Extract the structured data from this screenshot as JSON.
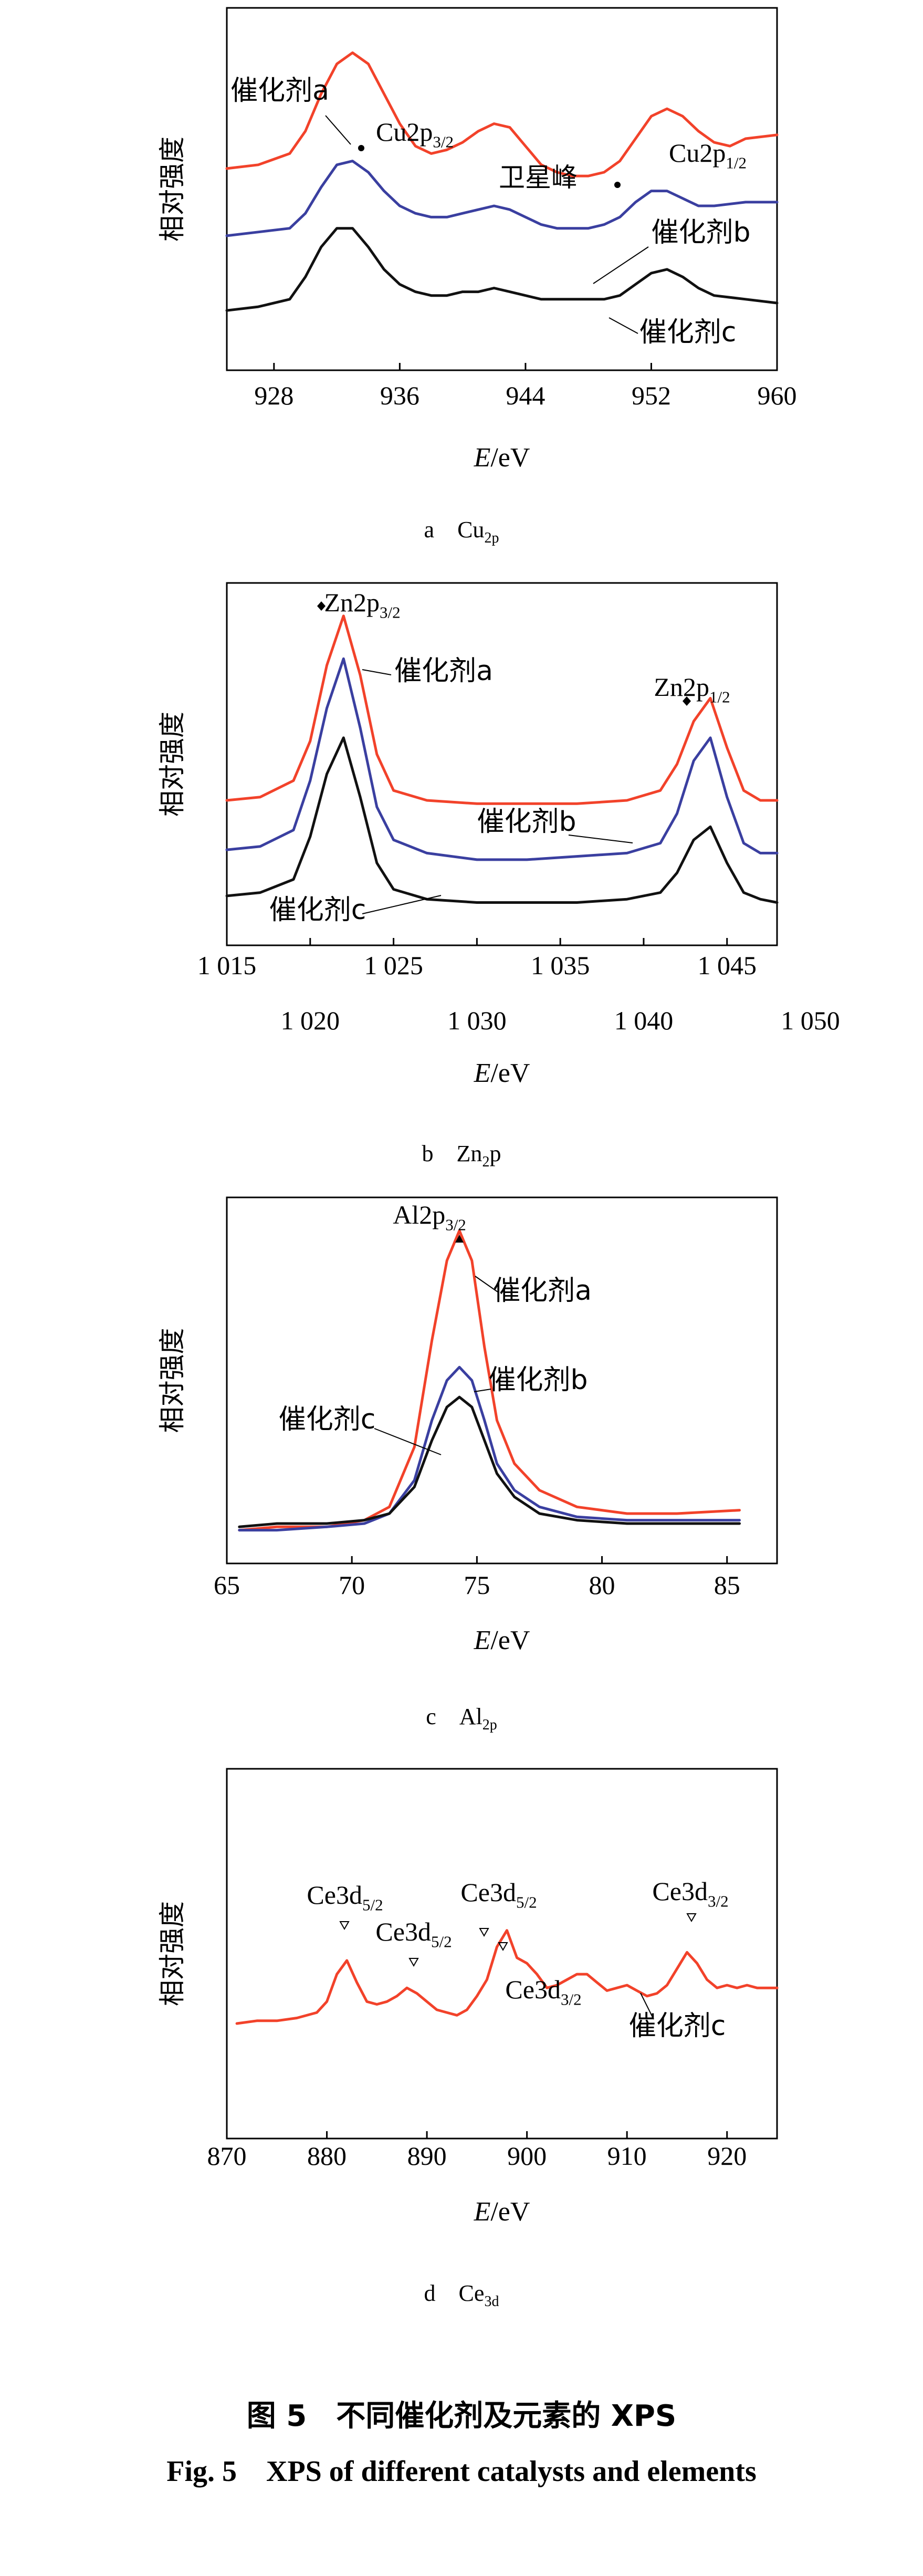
{
  "colors": {
    "catalyst_a": "#f2422a",
    "catalyst_b": "#3a3fa0",
    "catalyst_c": "#111111",
    "frame": "#000000"
  },
  "chart_data": [
    {
      "type": "line",
      "subfigure": "a",
      "caption": "a Cu2p",
      "caption_main": "a　Cu",
      "caption_sub": "2p",
      "xlabel_italic": "E",
      "xlabel_unit": "/eV",
      "ylabel": "相对强度",
      "xlim": [
        925,
        960
      ],
      "xticks": [
        928,
        936,
        944,
        952,
        960
      ],
      "xtick_labels": [
        "928",
        "936",
        "944",
        "952",
        "960"
      ],
      "series": [
        {
          "name": "催化剂a",
          "color": "#f2422a",
          "x": [
            925,
            927,
            929,
            930,
            931,
            932,
            933,
            934,
            935,
            936,
            937,
            938,
            939,
            940,
            941,
            942,
            943,
            944,
            945,
            946,
            947,
            948,
            949,
            950,
            951,
            952,
            953,
            954,
            955,
            956,
            957,
            958,
            960
          ],
          "y": [
            0.62,
            0.63,
            0.66,
            0.72,
            0.82,
            0.9,
            0.93,
            0.9,
            0.82,
            0.74,
            0.68,
            0.66,
            0.67,
            0.69,
            0.72,
            0.74,
            0.73,
            0.68,
            0.63,
            0.61,
            0.6,
            0.6,
            0.61,
            0.64,
            0.7,
            0.76,
            0.78,
            0.76,
            0.72,
            0.69,
            0.68,
            0.7,
            0.71
          ]
        },
        {
          "name": "催化剂b",
          "color": "#3a3fa0",
          "x": [
            925,
            927,
            929,
            930,
            931,
            932,
            933,
            934,
            935,
            936,
            937,
            938,
            939,
            940,
            941,
            942,
            943,
            944,
            945,
            946,
            947,
            948,
            949,
            950,
            951,
            952,
            953,
            954,
            955,
            956,
            958,
            960
          ],
          "y": [
            0.44,
            0.45,
            0.46,
            0.5,
            0.57,
            0.63,
            0.64,
            0.61,
            0.56,
            0.52,
            0.5,
            0.49,
            0.49,
            0.5,
            0.51,
            0.52,
            0.51,
            0.49,
            0.47,
            0.46,
            0.46,
            0.46,
            0.47,
            0.49,
            0.53,
            0.56,
            0.56,
            0.54,
            0.52,
            0.52,
            0.53,
            0.53
          ]
        },
        {
          "name": "催化剂c",
          "color": "#111111",
          "x": [
            925,
            927,
            929,
            930,
            931,
            932,
            933,
            934,
            935,
            936,
            937,
            938,
            939,
            940,
            941,
            942,
            943,
            944,
            945,
            946,
            947,
            948,
            949,
            950,
            951,
            952,
            953,
            954,
            955,
            956,
            958,
            960
          ],
          "y": [
            0.24,
            0.25,
            0.27,
            0.33,
            0.41,
            0.46,
            0.46,
            0.41,
            0.35,
            0.31,
            0.29,
            0.28,
            0.28,
            0.29,
            0.29,
            0.3,
            0.29,
            0.28,
            0.27,
            0.27,
            0.27,
            0.27,
            0.27,
            0.28,
            0.31,
            0.34,
            0.35,
            0.33,
            0.3,
            0.28,
            0.27,
            0.26
          ]
        }
      ],
      "annotations": [
        {
          "text_main": "Cu2p",
          "text_sub": "3/2",
          "x": 932.8,
          "y": 0.95,
          "marker": "dot"
        },
        {
          "text": "卫星峰",
          "x": 942,
          "y": 0.8
        },
        {
          "text_main": "Cu2p",
          "text_sub": "1/2",
          "x": 949,
          "y": 0.8,
          "marker": "dot"
        }
      ],
      "series_labels": [
        "催化剂a",
        "催化剂b",
        "催化剂c"
      ]
    },
    {
      "type": "line",
      "subfigure": "b",
      "caption": "b Zn2p",
      "caption_main": "b　Zn",
      "caption_sub": "2",
      "caption_tail": "p",
      "xlabel_italic": "E",
      "xlabel_unit": "/eV",
      "ylabel": "相对强度",
      "xlim": [
        1015,
        1048
      ],
      "xticks_top": [
        1015,
        1025,
        1035,
        1045
      ],
      "xtick_top_labels": [
        "1 015",
        "1 025",
        "1 035",
        "1 045"
      ],
      "xticks_bottom": [
        1020,
        1030,
        1040,
        1050
      ],
      "xtick_bottom_labels": [
        "1 020",
        "1 030",
        "1 040",
        "1 050"
      ],
      "series": [
        {
          "name": "催化剂a",
          "color": "#f2422a",
          "x": [
            1015,
            1017,
            1019,
            1020,
            1021,
            1022,
            1023,
            1024,
            1025,
            1027,
            1030,
            1033,
            1036,
            1039,
            1041,
            1042,
            1043,
            1044,
            1045,
            1046,
            1047,
            1048
          ],
          "y": [
            0.44,
            0.45,
            0.5,
            0.62,
            0.85,
            1.0,
            0.82,
            0.58,
            0.47,
            0.44,
            0.43,
            0.43,
            0.43,
            0.44,
            0.47,
            0.55,
            0.68,
            0.75,
            0.6,
            0.47,
            0.44,
            0.44
          ]
        },
        {
          "name": "催化剂b",
          "color": "#3a3fa0",
          "x": [
            1015,
            1017,
            1019,
            1020,
            1021,
            1022,
            1023,
            1024,
            1025,
            1027,
            1030,
            1033,
            1036,
            1039,
            1041,
            1042,
            1043,
            1044,
            1045,
            1046,
            1047,
            1048
          ],
          "y": [
            0.29,
            0.3,
            0.35,
            0.5,
            0.72,
            0.87,
            0.66,
            0.42,
            0.32,
            0.28,
            0.26,
            0.26,
            0.27,
            0.28,
            0.31,
            0.4,
            0.56,
            0.63,
            0.45,
            0.31,
            0.28,
            0.28
          ]
        },
        {
          "name": "催化剂c",
          "color": "#111111",
          "x": [
            1015,
            1017,
            1019,
            1020,
            1021,
            1022,
            1023,
            1024,
            1025,
            1027,
            1030,
            1033,
            1036,
            1039,
            1041,
            1042,
            1043,
            1044,
            1045,
            1046,
            1047,
            1048
          ],
          "y": [
            0.15,
            0.16,
            0.2,
            0.33,
            0.52,
            0.63,
            0.45,
            0.25,
            0.17,
            0.14,
            0.13,
            0.13,
            0.13,
            0.14,
            0.16,
            0.22,
            0.32,
            0.36,
            0.25,
            0.16,
            0.14,
            0.13
          ]
        }
      ],
      "annotations": [
        {
          "text_main": "Zn2p",
          "text_sub": "3/2",
          "x": 1022,
          "y": 1.03,
          "marker": "diamond"
        },
        {
          "text_main": "Zn2p",
          "text_sub": "1/2",
          "x": 1044,
          "y": 0.79,
          "marker": "diamond"
        }
      ],
      "series_labels": [
        "催化剂a",
        "催化剂b",
        "催化剂c"
      ]
    },
    {
      "type": "line",
      "subfigure": "c",
      "caption": "c Al2p",
      "caption_main": "c　Al",
      "caption_sub": "2p",
      "xlabel_italic": "E",
      "xlabel_unit": "/eV",
      "ylabel": "相对强度",
      "xlim": [
        65,
        87
      ],
      "xticks": [
        65,
        70,
        75,
        80,
        85
      ],
      "xtick_labels": [
        "65",
        "70",
        "75",
        "80",
        "85"
      ],
      "series": [
        {
          "name": "催化剂a",
          "color": "#f2422a",
          "x": [
            65.5,
            67,
            69,
            70.5,
            71.5,
            72.5,
            73.2,
            73.8,
            74.3,
            74.8,
            75.3,
            75.8,
            76.5,
            77.5,
            79,
            81,
            83,
            85.5
          ],
          "y": [
            0.05,
            0.06,
            0.06,
            0.08,
            0.12,
            0.3,
            0.62,
            0.86,
            0.95,
            0.86,
            0.6,
            0.38,
            0.25,
            0.17,
            0.12,
            0.1,
            0.1,
            0.11
          ]
        },
        {
          "name": "催化剂b",
          "color": "#3a3fa0",
          "x": [
            65.5,
            67,
            69,
            70.5,
            71.5,
            72.5,
            73.2,
            73.8,
            74.3,
            74.8,
            75.3,
            75.8,
            76.5,
            77.5,
            79,
            81,
            83,
            85.5
          ],
          "y": [
            0.05,
            0.05,
            0.06,
            0.07,
            0.1,
            0.2,
            0.38,
            0.5,
            0.54,
            0.5,
            0.38,
            0.25,
            0.17,
            0.12,
            0.09,
            0.08,
            0.08,
            0.08
          ]
        },
        {
          "name": "催化剂c",
          "color": "#111111",
          "x": [
            65.5,
            67,
            69,
            70.5,
            71.5,
            72.5,
            73.2,
            73.8,
            74.3,
            74.8,
            75.3,
            75.8,
            76.5,
            77.5,
            79,
            81,
            83,
            85.5
          ],
          "y": [
            0.06,
            0.07,
            0.07,
            0.08,
            0.1,
            0.18,
            0.32,
            0.42,
            0.45,
            0.42,
            0.32,
            0.22,
            0.15,
            0.1,
            0.08,
            0.07,
            0.07,
            0.07
          ]
        }
      ],
      "annotations": [
        {
          "text_main": "Al2p",
          "text_sub": "3/2",
          "x": 74.3,
          "y": 0.98,
          "marker": "triangle"
        }
      ],
      "series_labels": [
        "催化剂a",
        "催化剂b",
        "催化剂c"
      ]
    },
    {
      "type": "line",
      "subfigure": "d",
      "caption": "d Ce3d",
      "caption_main": "d　Ce",
      "caption_sub": "3d",
      "xlabel_italic": "E",
      "xlabel_unit": "/eV",
      "ylabel": "相对强度",
      "xlim": [
        870,
        925
      ],
      "xticks": [
        870,
        880,
        890,
        900,
        910,
        920
      ],
      "xtick_labels": [
        "870",
        "880",
        "890",
        "900",
        "910",
        "920"
      ],
      "series": [
        {
          "name": "催化剂c",
          "color": "#f2422a",
          "x": [
            871,
            873,
            875,
            877,
            879,
            880,
            881,
            882,
            883,
            884,
            885,
            886,
            887,
            888,
            889,
            890,
            891,
            892,
            893,
            894,
            895,
            896,
            897,
            898,
            899,
            900,
            901,
            902,
            903,
            904,
            905,
            906,
            907,
            908,
            909,
            910,
            911,
            912,
            913,
            914,
            915,
            916,
            917,
            918,
            919,
            920,
            921,
            922,
            923,
            925
          ],
          "y": [
            0.42,
            0.43,
            0.43,
            0.44,
            0.46,
            0.5,
            0.6,
            0.65,
            0.57,
            0.5,
            0.49,
            0.5,
            0.52,
            0.55,
            0.53,
            0.5,
            0.47,
            0.46,
            0.45,
            0.47,
            0.52,
            0.58,
            0.7,
            0.76,
            0.66,
            0.64,
            0.6,
            0.55,
            0.56,
            0.58,
            0.6,
            0.6,
            0.57,
            0.54,
            0.55,
            0.56,
            0.54,
            0.52,
            0.53,
            0.56,
            0.62,
            0.68,
            0.64,
            0.58,
            0.55,
            0.56,
            0.55,
            0.56,
            0.55,
            0.55
          ]
        }
      ],
      "annotations": [
        {
          "text_main": "Ce3d",
          "text_sub": "5/2",
          "x": 882,
          "y": 0.78,
          "marker": "open-triangle"
        },
        {
          "text_main": "Ce3d",
          "text_sub": "5/2",
          "x": 888.5,
          "y": 0.63,
          "marker": "open-triangle"
        },
        {
          "text_main": "Ce3d",
          "text_sub": "5/2",
          "x": 897.5,
          "y": 0.83,
          "marker": "open-triangle"
        },
        {
          "text_main": "Ce3d",
          "text_sub": "3/2",
          "x": 895.5,
          "y": 0.66,
          "marker": "open-triangle"
        },
        {
          "text_main": "Ce3d",
          "text_sub": "3/2",
          "x": 916,
          "y": 0.8,
          "marker": "open-triangle"
        }
      ],
      "series_labels": [
        "催化剂c"
      ]
    }
  ],
  "figure_caption_cn_num": "图 5",
  "figure_caption_cn_text": "不同催化剂及元素的 XPS",
  "figure_caption_en_num": "Fig. 5",
  "figure_caption_en_text": "XPS of different catalysts and elements"
}
